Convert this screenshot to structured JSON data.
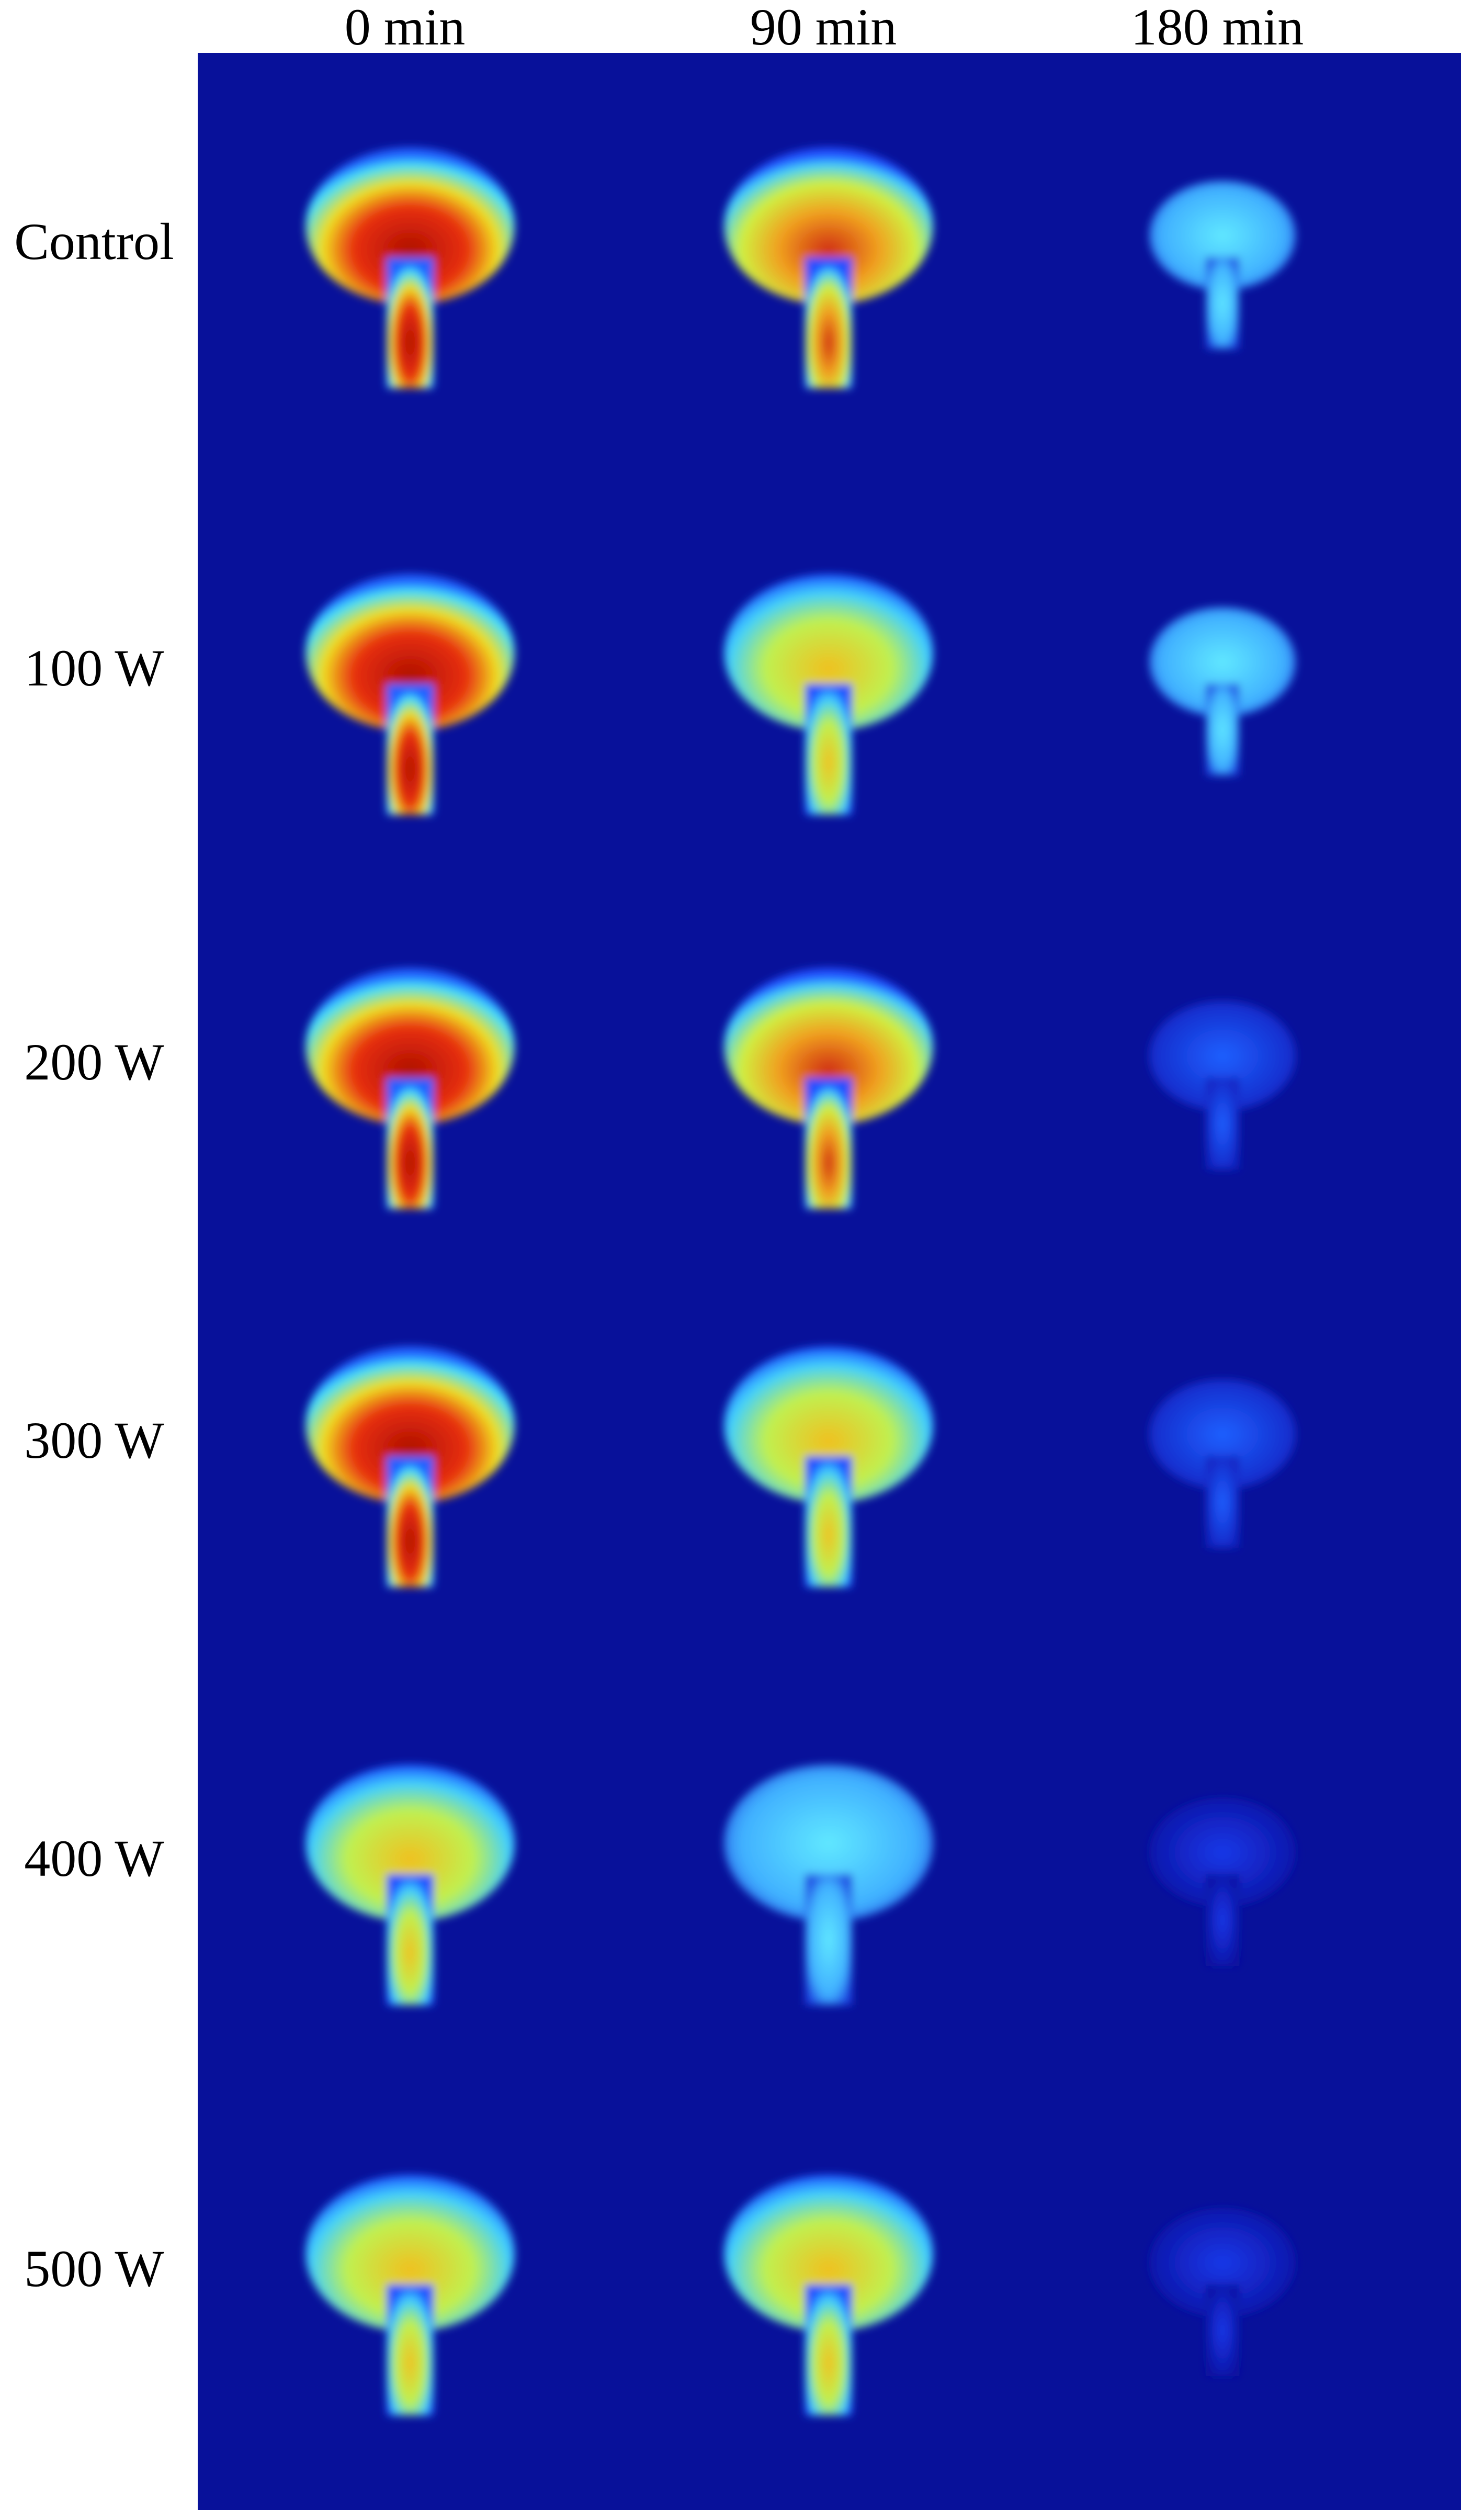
{
  "columns": [
    "0 min",
    "90 min",
    "180 min"
  ],
  "rows": [
    "Control",
    "100 W",
    "200 W",
    "300 W",
    "400 W",
    "500 W"
  ]
}
